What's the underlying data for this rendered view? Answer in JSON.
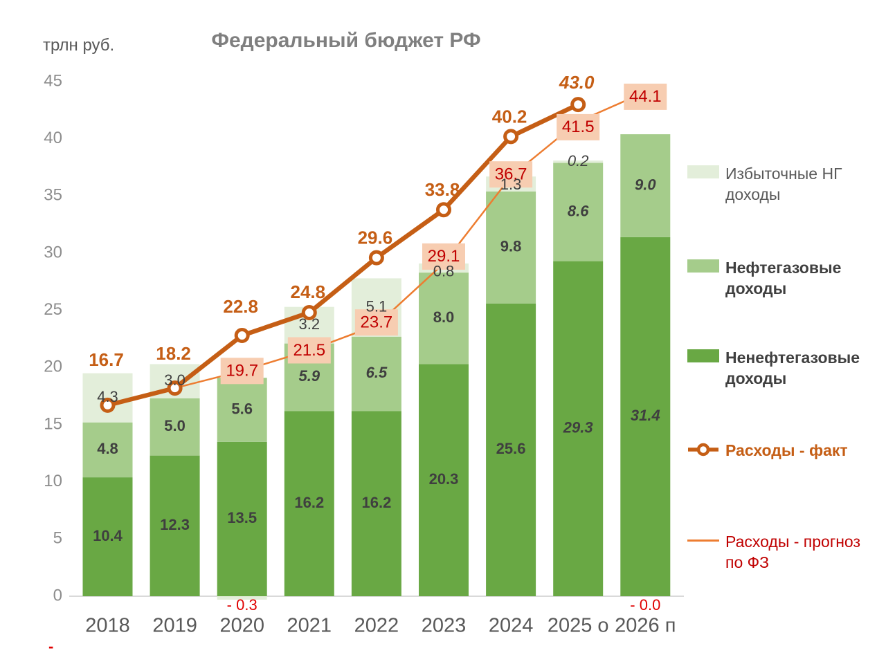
{
  "title": "Федеральный бюджет РФ",
  "unit_label": "трлн руб.",
  "stray_mark": "-",
  "chart_data": {
    "type": "combo: stacked bar + line",
    "title": "Федеральный бюджет РФ",
    "ylabel": "трлн руб.",
    "xlabel": "",
    "ylim": [
      0,
      45
    ],
    "ytick_step": 5,
    "grid": false,
    "legend_position": "right",
    "categories": [
      "2018",
      "2019",
      "2020",
      "2021",
      "2022",
      "2023",
      "2024",
      "2025 о",
      "2026 п"
    ],
    "bar_series": [
      {
        "name": "Ненефтегазовые доходы",
        "color": "#69a844",
        "values": [
          10.4,
          12.3,
          13.5,
          16.2,
          16.2,
          20.3,
          25.6,
          29.3,
          31.4
        ],
        "labels": [
          "10.4",
          "12.3",
          "13.5",
          "16.2",
          "16.2",
          "20.3",
          "25.6",
          "29.3",
          "31.4"
        ],
        "italic": [
          false,
          false,
          false,
          false,
          false,
          false,
          false,
          true,
          true
        ]
      },
      {
        "name": "Нефтегазовые доходы",
        "color": "#a5cc8b",
        "values": [
          4.8,
          5.0,
          5.6,
          5.9,
          6.5,
          8.0,
          9.8,
          8.6,
          9.0
        ],
        "labels": [
          "4.8",
          "5.0",
          "5.6",
          "5.9",
          "6.5",
          "8.0",
          "9.8",
          "8.6",
          "9.0"
        ],
        "italic": [
          false,
          false,
          false,
          true,
          true,
          false,
          false,
          true,
          true
        ]
      },
      {
        "name": "Избыточные НГ доходы",
        "color": "#e3eeda",
        "values": [
          4.3,
          3.0,
          -0.3,
          3.2,
          5.1,
          0.8,
          1.3,
          0.2,
          0
        ],
        "labels": [
          "4.3",
          "3.0",
          "- 0.3",
          "3.2",
          "5.1",
          "0.8",
          "1.3",
          "0.2",
          "- 0.0"
        ],
        "italic": [
          false,
          false,
          false,
          false,
          false,
          false,
          false,
          true,
          false
        ]
      }
    ],
    "line_series": [
      {
        "name": "Расходы - факт",
        "color": "#c55e15",
        "style": "thick_with_markers",
        "values": [
          16.7,
          18.2,
          22.8,
          24.8,
          29.6,
          33.8,
          40.2,
          43.0,
          null
        ],
        "labels": [
          "16.7",
          "18.2",
          "22.8",
          "24.8",
          "29.6",
          "33.8",
          "40.2",
          "43.0",
          null
        ],
        "italic": [
          false,
          false,
          false,
          false,
          false,
          false,
          false,
          true,
          false
        ]
      },
      {
        "name": "Расходы - прогноз по ФЗ",
        "color": "#ed7d31",
        "style": "thin",
        "values": [
          null,
          18.2,
          19.7,
          21.5,
          23.7,
          29.1,
          36.7,
          41.5,
          44.1
        ],
        "boxed_labels": [
          null,
          null,
          "19.7",
          "21.5",
          "23.7",
          "29.1",
          "36.7",
          "41.5",
          "44.1"
        ]
      }
    ],
    "label_box_color": "#f7cdb1",
    "label_box_text_color": "#c00000",
    "negative_label_color": "#e00000"
  },
  "legend": {
    "items": [
      {
        "label": "Избыточные НГ доходы",
        "swatch": "box",
        "color": "#e3eeda",
        "text_color": "#595959",
        "bold": false
      },
      {
        "label": "Нефтегазовые доходы",
        "swatch": "box",
        "color": "#a5cc8b",
        "text_color": "#404040",
        "bold": true
      },
      {
        "label": "Ненефтегазовые доходы",
        "swatch": "box",
        "color": "#69a844",
        "text_color": "#404040",
        "bold": true
      },
      {
        "label": "Расходы - факт",
        "swatch": "line_marker",
        "color": "#c55e15",
        "text_color": "#c55e15",
        "bold": true
      },
      {
        "label": "Расходы - прогноз по ФЗ",
        "swatch": "line",
        "color": "#ed7d31",
        "text_color": "#c00000",
        "bold": false
      }
    ]
  }
}
